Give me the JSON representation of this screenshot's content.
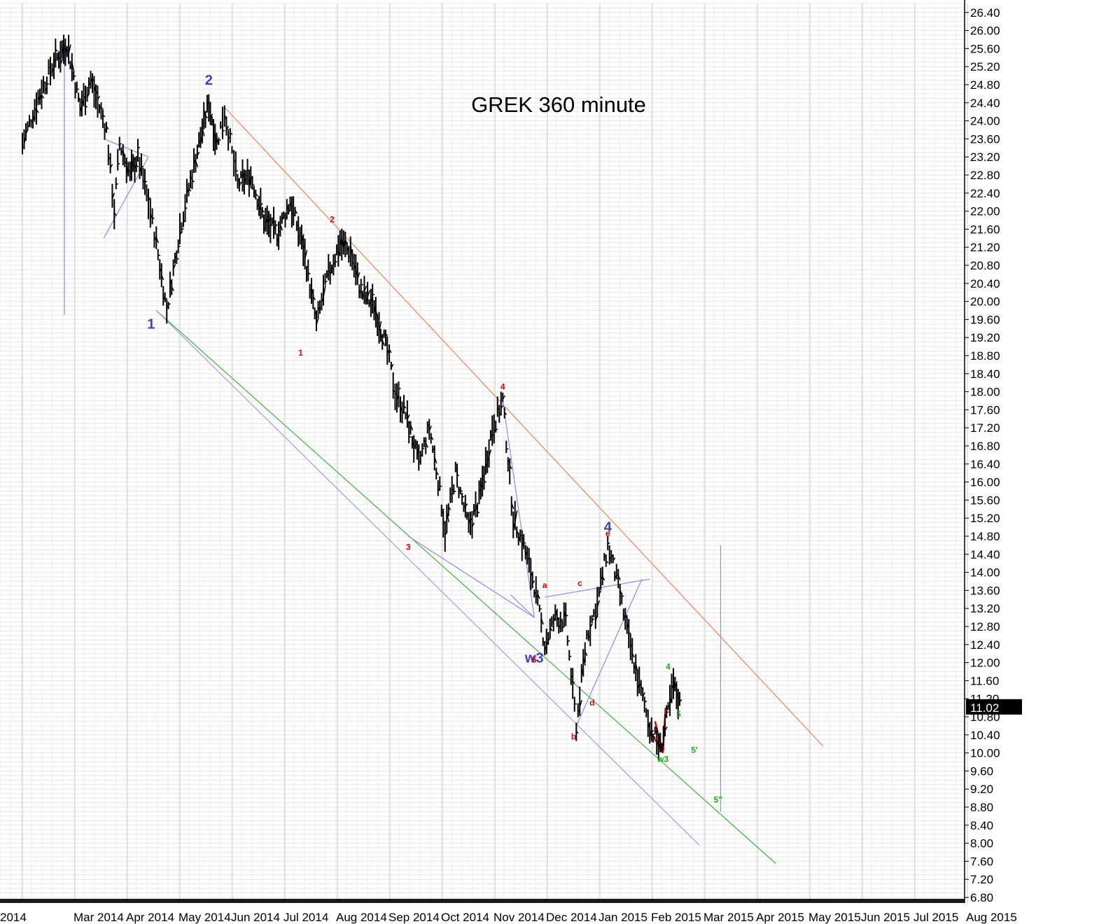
{
  "chart_data": {
    "type": "bar",
    "title": "GREK 360 minute",
    "last_price": "11.02",
    "y_ticks": [
      "6.80",
      "7.20",
      "7.60",
      "8.00",
      "8.40",
      "8.80",
      "9.20",
      "9.60",
      "10.00",
      "10.40",
      "10.80",
      "11.20",
      "11.60",
      "12.00",
      "12.40",
      "12.80",
      "13.20",
      "13.60",
      "14.00",
      "14.40",
      "14.80",
      "15.20",
      "15.60",
      "16.00",
      "16.40",
      "16.80",
      "17.20",
      "17.60",
      "18.00",
      "18.40",
      "18.80",
      "19.20",
      "19.60",
      "20.00",
      "20.40",
      "20.80",
      "21.20",
      "21.60",
      "22.00",
      "22.40",
      "22.80",
      "23.20",
      "23.60",
      "24.00",
      "24.40",
      "24.80",
      "25.20",
      "25.60",
      "26.00",
      "26.40"
    ],
    "ylim": [
      6.6,
      26.6
    ],
    "x_labels": [
      "2014",
      "Mar 2014",
      "Apr 2014",
      "May 2014",
      "Jun 2014",
      "Jul 2014",
      "Aug 2014",
      "Sep 2014",
      "Oct 2014",
      "Nov 2014",
      "Dec 2014",
      "Jan 2015",
      "Feb 2015",
      "Mar 2015",
      "Apr 2015",
      "May 2015",
      "Jun 2015",
      "Jul 2015",
      "Aug 2015"
    ],
    "grid": true,
    "price_path": [
      {
        "x": 0.0,
        "y": 23.5
      },
      {
        "x": 0.3,
        "y": 24.5
      },
      {
        "x": 0.6,
        "y": 25.3
      },
      {
        "x": 0.85,
        "y": 25.7
      },
      {
        "x": 1.1,
        "y": 24.3
      },
      {
        "x": 1.3,
        "y": 24.9
      },
      {
        "x": 1.6,
        "y": 23.8
      },
      {
        "x": 1.75,
        "y": 22.0
      },
      {
        "x": 1.85,
        "y": 23.5
      },
      {
        "x": 2.05,
        "y": 22.8
      },
      {
        "x": 2.2,
        "y": 23.2
      },
      {
        "x": 2.4,
        "y": 22.2
      },
      {
        "x": 2.55,
        "y": 21.3
      },
      {
        "x": 2.75,
        "y": 19.8
      },
      {
        "x": 3.0,
        "y": 21.6
      },
      {
        "x": 3.3,
        "y": 23.2
      },
      {
        "x": 3.55,
        "y": 24.4
      },
      {
        "x": 3.7,
        "y": 23.5
      },
      {
        "x": 3.85,
        "y": 24.2
      },
      {
        "x": 4.1,
        "y": 22.6
      },
      {
        "x": 4.35,
        "y": 22.8
      },
      {
        "x": 4.6,
        "y": 21.8
      },
      {
        "x": 4.85,
        "y": 21.5
      },
      {
        "x": 5.1,
        "y": 22.2
      },
      {
        "x": 5.35,
        "y": 21.2
      },
      {
        "x": 5.6,
        "y": 19.5
      },
      {
        "x": 5.8,
        "y": 20.5
      },
      {
        "x": 6.05,
        "y": 21.3
      },
      {
        "x": 6.25,
        "y": 21.1
      },
      {
        "x": 6.45,
        "y": 20.2
      },
      {
        "x": 6.7,
        "y": 19.9
      },
      {
        "x": 6.95,
        "y": 18.9
      },
      {
        "x": 7.1,
        "y": 18.0
      },
      {
        "x": 7.3,
        "y": 17.5
      },
      {
        "x": 7.55,
        "y": 16.4
      },
      {
        "x": 7.75,
        "y": 17.2
      },
      {
        "x": 7.95,
        "y": 15.8
      },
      {
        "x": 8.05,
        "y": 14.9
      },
      {
        "x": 8.25,
        "y": 16.2
      },
      {
        "x": 8.5,
        "y": 15.0
      },
      {
        "x": 8.7,
        "y": 15.6
      },
      {
        "x": 8.95,
        "y": 17.2
      },
      {
        "x": 9.15,
        "y": 17.8
      },
      {
        "x": 9.35,
        "y": 15.2
      },
      {
        "x": 9.55,
        "y": 14.6
      },
      {
        "x": 9.75,
        "y": 13.7
      },
      {
        "x": 9.95,
        "y": 12.4
      },
      {
        "x": 10.15,
        "y": 13.0
      },
      {
        "x": 10.35,
        "y": 12.9
      },
      {
        "x": 10.55,
        "y": 10.6
      },
      {
        "x": 10.75,
        "y": 12.6
      },
      {
        "x": 10.95,
        "y": 13.3
      },
      {
        "x": 11.15,
        "y": 14.6
      },
      {
        "x": 11.35,
        "y": 13.7
      },
      {
        "x": 11.55,
        "y": 12.5
      },
      {
        "x": 11.75,
        "y": 11.5
      },
      {
        "x": 11.95,
        "y": 10.6
      },
      {
        "x": 12.15,
        "y": 10.1
      },
      {
        "x": 12.3,
        "y": 10.9
      },
      {
        "x": 12.4,
        "y": 11.5
      },
      {
        "x": 12.55,
        "y": 11.0
      }
    ],
    "labels": [
      {
        "text": "1",
        "x": 2.45,
        "y": 19.4,
        "color": "#3f3fbf",
        "size": "big"
      },
      {
        "text": "2",
        "x": 3.55,
        "y": 24.8,
        "color": "#3f3fbf",
        "size": "big"
      },
      {
        "text": "4",
        "x": 11.15,
        "y": 14.9,
        "color": "#3f3fbf",
        "size": "big"
      },
      {
        "text": "w3",
        "x": 9.75,
        "y": 12.0,
        "color": "#3f3fbf",
        "size": "big"
      },
      {
        "text": "1",
        "x": 5.3,
        "y": 18.8,
        "color": "#e00000",
        "size": "small"
      },
      {
        "text": "2",
        "x": 5.9,
        "y": 21.75,
        "color": "#e00000",
        "size": "small"
      },
      {
        "text": "3",
        "x": 7.35,
        "y": 14.5,
        "color": "#e00000",
        "size": "small"
      },
      {
        "text": "4",
        "x": 9.15,
        "y": 18.05,
        "color": "#e00000",
        "size": "small"
      },
      {
        "text": "5",
        "x": 9.75,
        "y": 12.0,
        "color": "#e00000",
        "size": "small"
      },
      {
        "text": "a",
        "x": 9.95,
        "y": 13.65,
        "color": "#e00000",
        "size": "small"
      },
      {
        "text": "b",
        "x": 10.5,
        "y": 10.3,
        "color": "#e00000",
        "size": "small"
      },
      {
        "text": "c",
        "x": 10.62,
        "y": 13.7,
        "color": "#e00000",
        "size": "small"
      },
      {
        "text": "d",
        "x": 10.85,
        "y": 11.05,
        "color": "#e00000",
        "size": "small"
      },
      {
        "text": "e",
        "x": 11.15,
        "y": 14.8,
        "color": "#e00000",
        "size": "small"
      },
      {
        "text": "4",
        "x": 12.3,
        "y": 11.85,
        "color": "#22aa22",
        "size": "small"
      },
      {
        "text": "5",
        "x": 12.5,
        "y": 10.8,
        "color": "#22aa22",
        "size": "small"
      },
      {
        "text": "w3",
        "x": 12.2,
        "y": 9.8,
        "color": "#22aa22",
        "size": "small"
      },
      {
        "text": "5'",
        "x": 12.8,
        "y": 10.0,
        "color": "#22aa22",
        "size": "small"
      },
      {
        "text": "5''",
        "x": 13.25,
        "y": 8.9,
        "color": "#22aa22",
        "size": "small"
      }
    ],
    "lines": [
      {
        "color": "#f0825a",
        "from": [
          3.85,
          24.3
        ],
        "to": [
          15.25,
          10.15
        ]
      },
      {
        "color": "#40b040",
        "from": [
          2.55,
          19.8
        ],
        "to": [
          14.35,
          7.55
        ]
      },
      {
        "color": "#9aa0e8",
        "from": [
          2.55,
          19.8
        ],
        "to": [
          12.9,
          7.95
        ]
      },
      {
        "color": "#8c8ce0",
        "from": [
          1.55,
          21.4
        ],
        "to": [
          2.4,
          23.2
        ]
      },
      {
        "color": "#8c8ce0",
        "from": [
          1.55,
          23.6
        ],
        "to": [
          2.4,
          23.2
        ]
      },
      {
        "color": "#8c8ce0",
        "from": [
          7.35,
          14.8
        ],
        "to": [
          9.75,
          13.0
        ]
      },
      {
        "color": "#8c8ce0",
        "from": [
          9.15,
          17.8
        ],
        "to": [
          9.75,
          13.0
        ]
      },
      {
        "color": "#8c8ce0",
        "from": [
          9.75,
          13.0
        ],
        "to": [
          9.3,
          13.5
        ]
      },
      {
        "color": "#8c8ce0",
        "from": [
          9.95,
          13.45
        ],
        "to": [
          11.95,
          13.85
        ]
      },
      {
        "color": "#8c8ce0",
        "from": [
          10.55,
          10.6
        ],
        "to": [
          11.8,
          13.85
        ]
      },
      {
        "color": "#8c8ce0",
        "from": [
          0.8,
          19.7
        ],
        "to": [
          0.8,
          25.7
        ]
      },
      {
        "color": "#8c8ce0",
        "from": [
          13.3,
          8.7
        ],
        "to": [
          13.3,
          14.6
        ]
      },
      {
        "color": "#e00000",
        "from": [
          11.95,
          10.5
        ],
        "to": [
          12.2,
          10.0
        ]
      },
      {
        "color": "#e00000",
        "from": [
          12.05,
          10.7
        ],
        "to": [
          12.2,
          10.0
        ]
      },
      {
        "color": "#e00000",
        "from": [
          12.2,
          10.0
        ],
        "to": [
          12.25,
          11.0
        ]
      }
    ]
  }
}
